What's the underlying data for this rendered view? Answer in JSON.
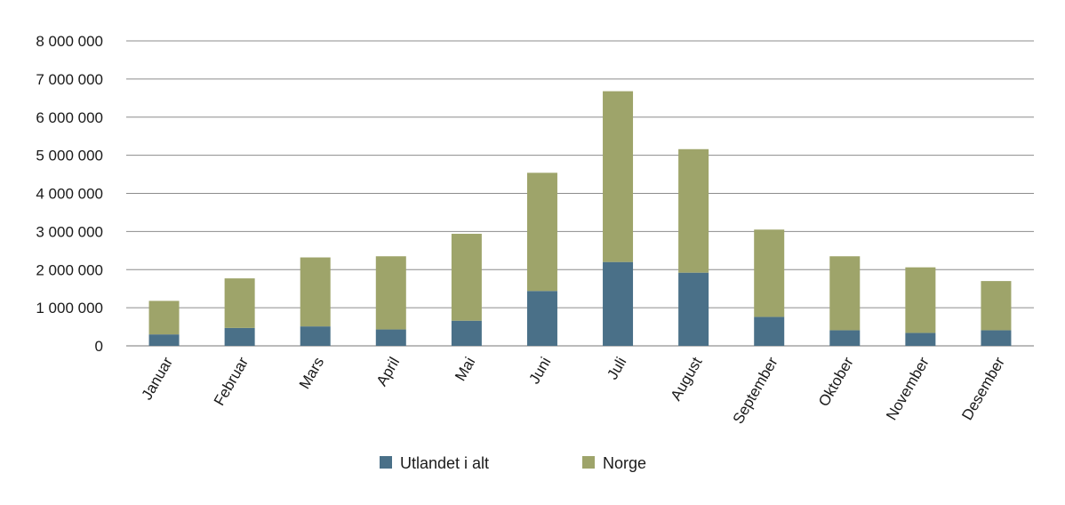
{
  "chart_data": {
    "type": "bar",
    "stacked": true,
    "categories": [
      "Januar",
      "Februar",
      "Mars",
      "April",
      "Mai",
      "Juni",
      "Juli",
      "August",
      "September",
      "Oktober",
      "November",
      "Desember"
    ],
    "series": [
      {
        "name": "Utlandet i alt",
        "color": "#4a7088",
        "values": [
          300000,
          470000,
          510000,
          430000,
          660000,
          1440000,
          2200000,
          1920000,
          760000,
          410000,
          340000,
          410000
        ]
      },
      {
        "name": "Norge",
        "color": "#9ea46a",
        "values": [
          880000,
          1300000,
          1810000,
          1920000,
          2280000,
          3100000,
          4480000,
          3240000,
          2290000,
          1940000,
          1720000,
          1290000
        ]
      }
    ],
    "ylim": [
      0,
      8000000
    ],
    "yticks": [
      "0",
      "1 000 000",
      "2 000 000",
      "3 000 000",
      "4 000 000",
      "5 000 000",
      "6 000 000",
      "7 000 000",
      "8 000 000"
    ],
    "grid": true,
    "legend_position": "bottom"
  }
}
